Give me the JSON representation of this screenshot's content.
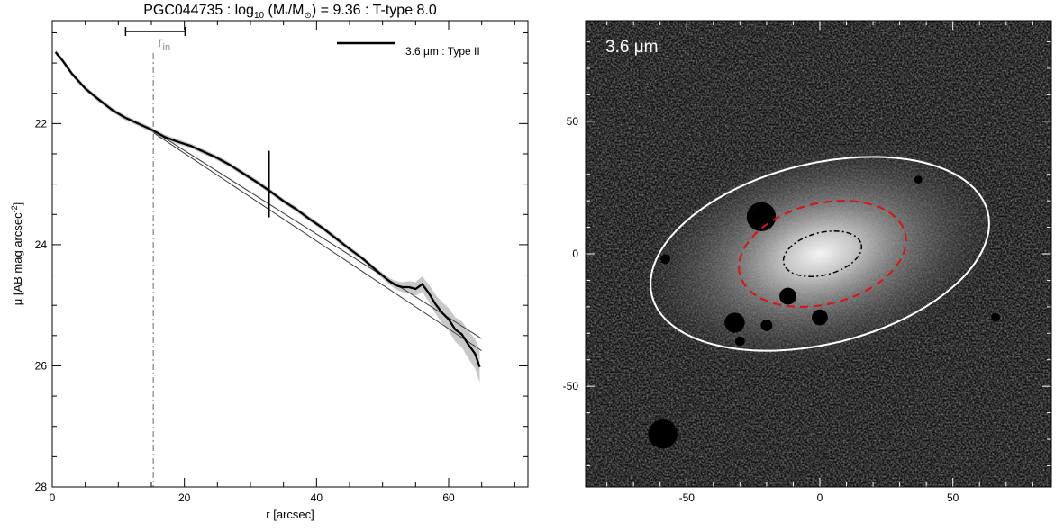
{
  "chart_data": [
    {
      "type": "line",
      "title_parts": {
        "name": "PGC044735 : log",
        "sub": "10",
        "mid": " (M",
        "star": "*",
        "slash": "/M",
        "sun": "⊙",
        "tail": ") = 9.36 : T-type 8.0"
      },
      "xlabel": "r [arcsec]",
      "ylabel_parts": {
        "main": "μ [AB mag arcsec",
        "sup": "-2",
        "end": "]"
      },
      "xlim": [
        0,
        72
      ],
      "ylim": [
        28,
        20.3
      ],
      "y_inverted": true,
      "x_ticks": [
        "0",
        "20",
        "40",
        "60"
      ],
      "x_tick_values": [
        0,
        20,
        40,
        60
      ],
      "x_minor_step": 5,
      "y_ticks": [
        "22",
        "24",
        "26",
        "28"
      ],
      "y_tick_values": [
        22,
        24,
        26,
        28
      ],
      "y_minor_step": 0.5,
      "legend": {
        "label": "3.6 μm : Type II",
        "position": "top-right",
        "color": "#000000"
      },
      "series": [
        {
          "name": "3.6 μm : Type II",
          "color": "#000000",
          "x": [
            0.5,
            1.5,
            3,
            5,
            7,
            9,
            11,
            13,
            15,
            17,
            19,
            21,
            23,
            25,
            27,
            29,
            31,
            33,
            35,
            37,
            39,
            41,
            43,
            45,
            47,
            49,
            51,
            52,
            53,
            54,
            55,
            56,
            57,
            58,
            59,
            60,
            61,
            62,
            63,
            64,
            64.7
          ],
          "y": [
            20.82,
            20.95,
            21.18,
            21.42,
            21.6,
            21.77,
            21.9,
            22.0,
            22.1,
            22.22,
            22.3,
            22.37,
            22.47,
            22.57,
            22.69,
            22.83,
            22.97,
            23.12,
            23.28,
            23.42,
            23.58,
            23.73,
            23.9,
            24.07,
            24.23,
            24.42,
            24.6,
            24.67,
            24.7,
            24.7,
            24.73,
            24.65,
            24.8,
            24.98,
            25.12,
            25.23,
            25.4,
            25.48,
            25.65,
            25.8,
            26.02
          ]
        }
      ],
      "error_band_color": "#c8c8c8",
      "fit_lines": [
        {
          "x": [
            15.3,
            65
          ],
          "y": [
            22.12,
            25.55
          ]
        },
        {
          "x": [
            15.3,
            65
          ],
          "y": [
            22.15,
            25.75
          ]
        }
      ],
      "fit_color": "#3a3a3a",
      "break_marker": {
        "x": 32.8,
        "y": 23.0,
        "half_height": 0.55
      },
      "r_in": {
        "label": "r",
        "sub": "in",
        "x": 15.3,
        "bracket_x": [
          11.1,
          20.1
        ],
        "color": "#8a8a8a"
      }
    },
    {
      "type": "image",
      "label": "3.6 μm",
      "xlim": [
        -88,
        87
      ],
      "ylim": [
        -88,
        88
      ],
      "x_ticks": [
        "-50",
        "0",
        "50"
      ],
      "x_tick_values": [
        -50,
        0,
        50
      ],
      "y_ticks": [
        "-50",
        "0",
        "50"
      ],
      "y_tick_values": [
        -50,
        0,
        50
      ],
      "minor_step": 10,
      "ellipses": [
        {
          "cx": 0,
          "cy": 0,
          "a": 65,
          "b": 34,
          "angle_deg": 14,
          "color": "#ffffff",
          "style": "solid"
        },
        {
          "cx": 1,
          "cy": 0,
          "a": 32,
          "b": 19,
          "angle_deg": 14,
          "color": "#dd1111",
          "style": "dashed"
        },
        {
          "cx": 1,
          "cy": 0,
          "a": 15,
          "b": 8,
          "angle_deg": 14,
          "color": "#000000",
          "style": "dashdot"
        }
      ],
      "masks": [
        {
          "x": -22,
          "y": 14,
          "r": 5.5
        },
        {
          "x": -12,
          "y": -16,
          "r": 3.2
        },
        {
          "x": -32,
          "y": -26,
          "r": 3.8
        },
        {
          "x": -20,
          "y": -27,
          "r": 2.2
        },
        {
          "x": -59,
          "y": -68,
          "r": 5.5
        },
        {
          "x": 0,
          "y": -24,
          "r": 3.0
        },
        {
          "x": -30,
          "y": -33,
          "r": 1.8
        },
        {
          "x": -58,
          "y": -2,
          "r": 1.8
        },
        {
          "x": 37,
          "y": 28,
          "r": 1.5
        },
        {
          "x": 66,
          "y": -24,
          "r": 1.6
        }
      ],
      "frame_color": "#000000",
      "background_color": "#111111"
    }
  ]
}
